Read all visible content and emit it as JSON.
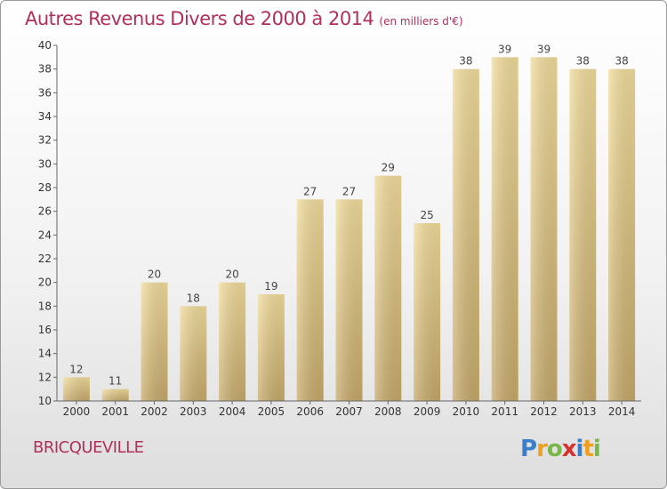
{
  "chart_data": {
    "type": "bar",
    "title": "Autres Revenus Divers de 2000 à 2014",
    "subtitle": "(en milliers d'€)",
    "categories": [
      "2000",
      "2001",
      "2002",
      "2003",
      "2004",
      "2005",
      "2006",
      "2007",
      "2008",
      "2009",
      "2010",
      "2011",
      "2012",
      "2013",
      "2014"
    ],
    "values": [
      12,
      11,
      20,
      18,
      20,
      19,
      27,
      27,
      29,
      25,
      38,
      39,
      39,
      38,
      38
    ],
    "ylim": [
      10,
      40
    ],
    "yticks": [
      10,
      12,
      14,
      16,
      18,
      20,
      22,
      24,
      26,
      28,
      30,
      32,
      34,
      36,
      38,
      40
    ],
    "grid": false,
    "bar_color": "#e2c886"
  },
  "place_name": "BRICQUEVILLE",
  "logo": {
    "letters": [
      "P",
      "r",
      "o",
      "x",
      "i",
      "t",
      "i"
    ],
    "colors": [
      "#3a7fc9",
      "#f0a021",
      "#7ab648",
      "#d8322f",
      "#3a7fc9",
      "#f0a021",
      "#7ab648"
    ]
  }
}
